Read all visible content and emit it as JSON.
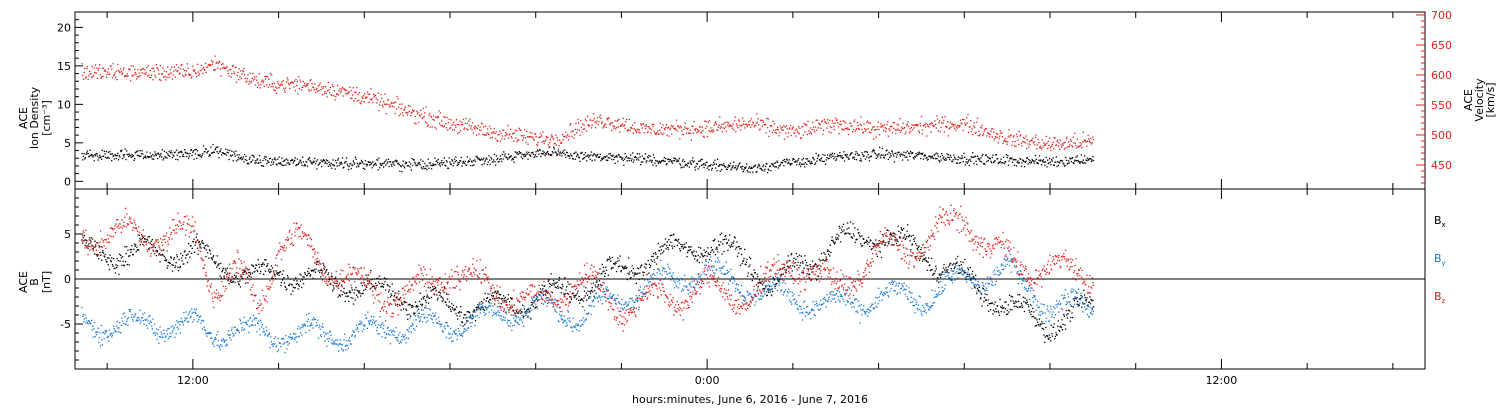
{
  "chart_data": [
    {
      "type": "scatter",
      "panel": "top",
      "ylabel_lines": [
        "ACE",
        "Ion Density",
        "[cm⁻³]"
      ],
      "ylabel_right_lines": [
        "ACE",
        "Velocity",
        "[km/s]"
      ],
      "ylim": [
        -1,
        22
      ],
      "yticks": [
        0,
        5,
        10,
        15,
        20
      ],
      "yticks_labels": [
        "0",
        "5",
        "10",
        "15",
        "20"
      ],
      "ylim_right": [
        410,
        705
      ],
      "yticks_right": [
        450,
        500,
        550,
        600,
        650,
        700
      ],
      "yticks_right_labels": [
        "450",
        "500",
        "550",
        "600",
        "650",
        "700"
      ],
      "colors": {
        "density": "#000000",
        "velocity": "#e0201b"
      },
      "series": [
        {
          "key": "density",
          "x": [
            0,
            1,
            2,
            3,
            4,
            5,
            6,
            8,
            10,
            12,
            14,
            16,
            18,
            20,
            22,
            24,
            26,
            28,
            30,
            32,
            34,
            36,
            38,
            40,
            42
          ],
          "values": [
            3.5,
            4.2,
            3.2,
            2.8,
            2.7,
            2.6,
            2.5,
            2.4,
            2.2,
            2.5,
            3.0,
            3.8,
            3.4,
            3.0,
            2.8,
            2.2,
            1.8,
            2.5,
            3.2,
            3.6,
            3.4,
            3.0,
            2.8,
            2.6,
            3.0
          ],
          "spread": 0.6
        },
        {
          "key": "velocity",
          "x": [
            0,
            1,
            2,
            3,
            4,
            5,
            6,
            8,
            10,
            12,
            14,
            16,
            17,
            18,
            19,
            20,
            21,
            22,
            24,
            26,
            28,
            30,
            32,
            34,
            36,
            38,
            40,
            42
          ],
          "values": [
            605,
            620,
            605,
            590,
            585,
            585,
            580,
            565,
            540,
            520,
            505,
            495,
            495,
            515,
            525,
            520,
            510,
            510,
            512,
            520,
            505,
            520,
            510,
            515,
            520,
            495,
            485,
            490
          ],
          "spread": 12
        }
      ]
    },
    {
      "type": "scatter",
      "panel": "bottom",
      "ylabel_lines": [
        "ACE",
        "B",
        "[nT]"
      ],
      "ylim": [
        -10,
        10
      ],
      "yticks": [
        -5,
        0,
        5
      ],
      "yticks_labels": [
        "-5",
        "0",
        "5"
      ],
      "colors": {
        "Bx": "#000000",
        "By": "#1a79d6",
        "Bz": "#e0201b"
      },
      "legend": [
        {
          "key": "Bx",
          "base": "B",
          "sub": "x"
        },
        {
          "key": "By",
          "base": "B",
          "sub": "y"
        },
        {
          "key": "Bz",
          "base": "B",
          "sub": "z"
        }
      ],
      "series": [
        {
          "key": "Bx",
          "x": [
            0,
            1,
            2,
            3,
            4,
            6,
            8,
            10,
            12,
            14,
            16,
            18,
            20,
            22,
            24,
            26,
            27,
            28,
            30,
            32,
            34,
            36,
            38,
            40,
            42
          ],
          "values": [
            3,
            2,
            1,
            0,
            1,
            0,
            -1,
            -2,
            -3,
            -3,
            -2,
            -1,
            1,
            3,
            4,
            2,
            -1,
            1,
            4,
            5,
            3,
            0,
            -3,
            -5,
            -3
          ],
          "spread": 1.5
        },
        {
          "key": "By",
          "x": [
            0,
            1,
            2,
            3,
            4,
            6,
            8,
            10,
            12,
            14,
            16,
            18,
            20,
            22,
            24,
            26,
            28,
            30,
            32,
            34,
            36,
            38,
            40,
            42
          ],
          "values": [
            -5,
            -6,
            -5.5,
            -6,
            -6,
            -6,
            -6,
            -5,
            -5,
            -4,
            -3,
            -4,
            -2,
            0,
            1,
            -1,
            -2,
            -3,
            -2,
            -2,
            0,
            1,
            -3,
            -3
          ],
          "spread": 1.5
        },
        {
          "key": "Bz",
          "x": [
            0,
            1,
            2,
            3,
            4,
            5,
            6,
            8,
            10,
            12,
            14,
            16,
            18,
            20,
            22,
            24,
            26,
            28,
            30,
            32,
            34,
            36,
            37,
            38,
            40,
            42
          ],
          "values": [
            5,
            -1,
            1,
            -3,
            4,
            4,
            2,
            -1,
            -2,
            1,
            -1,
            -3,
            0,
            -3,
            -2,
            -1,
            -2,
            2,
            -1,
            3,
            4,
            7,
            4,
            2,
            1,
            1
          ],
          "spread": 1.8
        }
      ]
    }
  ],
  "xaxis": {
    "xlim": [
      -5.5,
      57.5
    ],
    "data_end_hour": 42,
    "ticks": [
      {
        "hour": 0,
        "label": "12:00"
      },
      {
        "hour": 24,
        "label": "0:00"
      },
      {
        "hour": 48,
        "label": "12:00"
      }
    ],
    "minor_tick_hours": [
      -4,
      0,
      4,
      8,
      12,
      16,
      20,
      24,
      28,
      32,
      36,
      40,
      44,
      48,
      52,
      56
    ],
    "title": "hours:minutes,  June  6, 2016 - June  7, 2016"
  }
}
